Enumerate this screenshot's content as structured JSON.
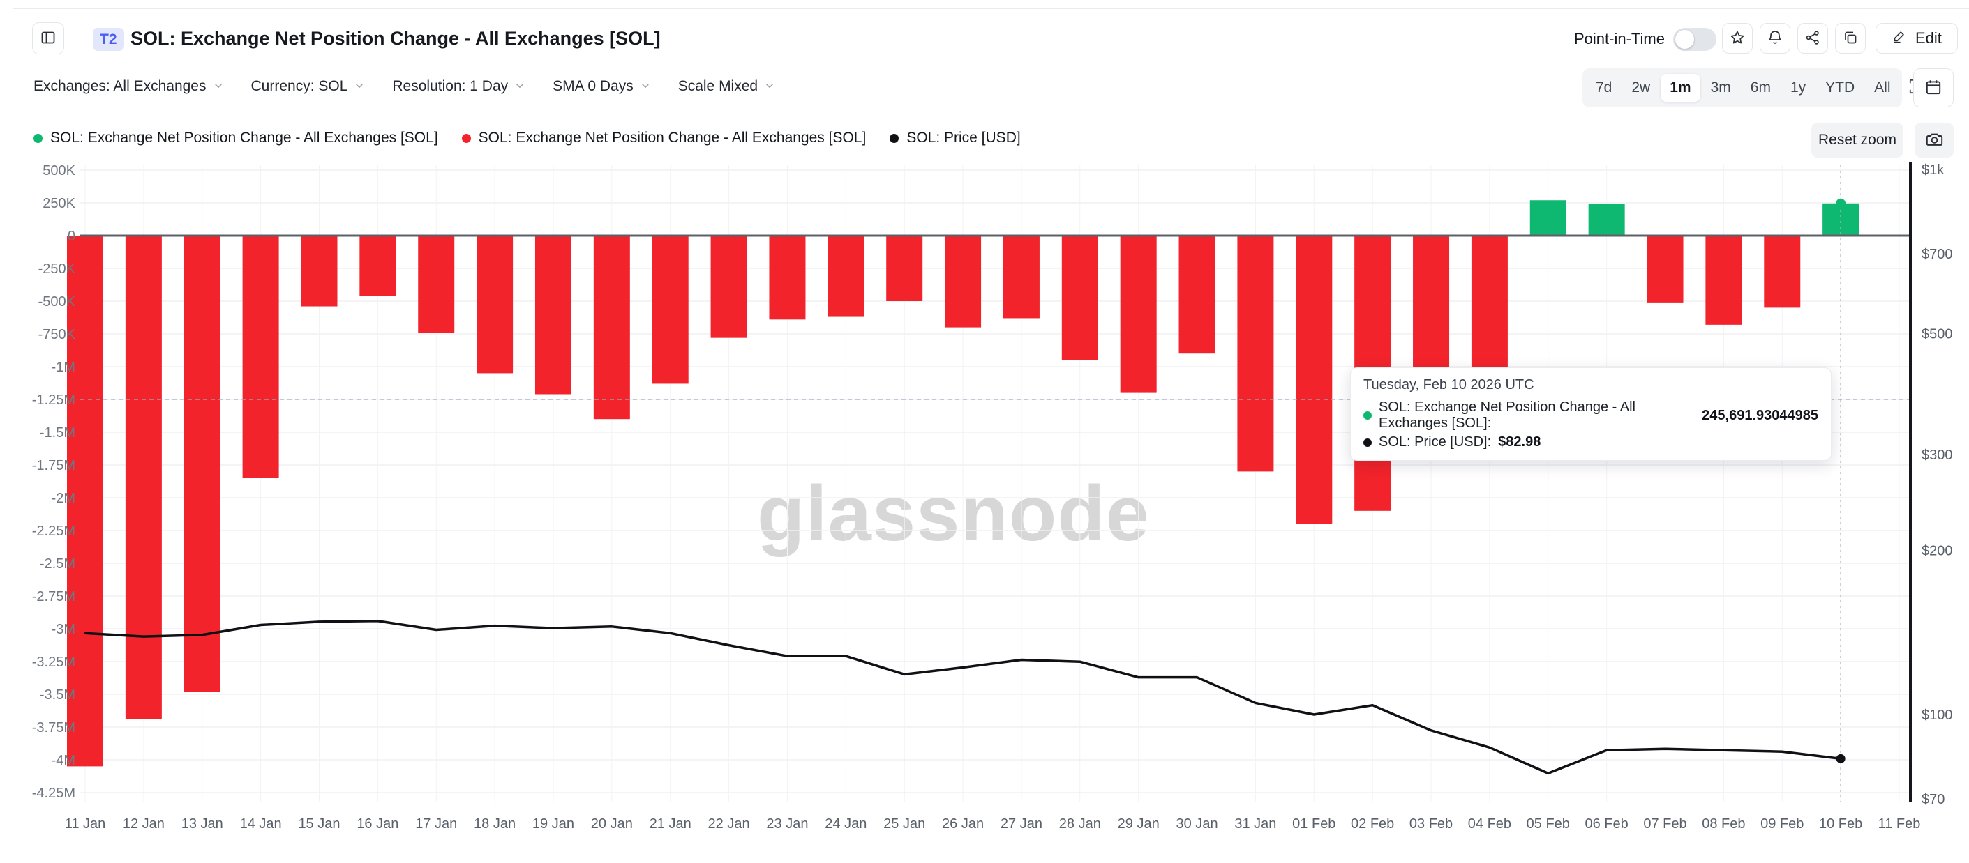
{
  "header": {
    "badge": "T2",
    "title": "SOL: Exchange Net Position Change - All Exchanges [SOL]",
    "point_in_time_label": "Point-in-Time",
    "point_in_time_on": false,
    "edit_label": "Edit"
  },
  "filters": [
    {
      "label": "Exchanges: All Exchanges"
    },
    {
      "label": "Currency: SOL"
    },
    {
      "label": "Resolution: 1 Day"
    },
    {
      "label": "SMA 0 Days"
    },
    {
      "label": "Scale Mixed"
    }
  ],
  "ranges": [
    "7d",
    "2w",
    "1m",
    "3m",
    "6m",
    "1y",
    "YTD",
    "All"
  ],
  "active_range": "1m",
  "legend": [
    {
      "label": "SOL: Exchange Net Position Change - All Exchanges [SOL]",
      "color": "#0fb871"
    },
    {
      "label": "SOL: Exchange Net Position Change - All Exchanges [SOL]",
      "color": "#f2232b"
    },
    {
      "label": "SOL: Price [USD]",
      "color": "#101114"
    }
  ],
  "reset_zoom_label": "Reset zoom",
  "watermark": "glassnode",
  "tooltip": {
    "date": "Tuesday, Feb 10 2026 UTC",
    "rows": [
      {
        "label": "SOL: Exchange Net Position Change - All Exchanges [SOL]:",
        "value": "245,691.93044985",
        "color": "#0fb871"
      },
      {
        "label": "SOL: Price [USD]:",
        "value": "$82.98",
        "color": "#101114"
      }
    ]
  },
  "chart_data": {
    "type": "bar",
    "subtypes": [
      "bar",
      "line"
    ],
    "title": "SOL: Exchange Net Position Change - All Exchanges [SOL]",
    "categories": [
      "11 Jan",
      "12 Jan",
      "13 Jan",
      "14 Jan",
      "15 Jan",
      "16 Jan",
      "17 Jan",
      "18 Jan",
      "19 Jan",
      "20 Jan",
      "21 Jan",
      "22 Jan",
      "23 Jan",
      "24 Jan",
      "25 Jan",
      "26 Jan",
      "27 Jan",
      "28 Jan",
      "29 Jan",
      "30 Jan",
      "31 Jan",
      "01 Feb",
      "02 Feb",
      "03 Feb",
      "04 Feb",
      "05 Feb",
      "06 Feb",
      "07 Feb",
      "08 Feb",
      "09 Feb",
      "10 Feb"
    ],
    "x_tick_labels": [
      "11 Jan",
      "12 Jan",
      "13 Jan",
      "14 Jan",
      "15 Jan",
      "16 Jan",
      "17 Jan",
      "18 Jan",
      "19 Jan",
      "20 Jan",
      "21 Jan",
      "22 Jan",
      "23 Jan",
      "24 Jan",
      "25 Jan",
      "26 Jan",
      "27 Jan",
      "28 Jan",
      "29 Jan",
      "30 Jan",
      "31 Jan",
      "01 Feb",
      "02 Feb",
      "03 Feb",
      "04 Feb",
      "05 Feb",
      "06 Feb",
      "07 Feb",
      "08 Feb",
      "09 Feb",
      "10 Feb",
      "11 Feb"
    ],
    "series": [
      {
        "name": "SOL: Exchange Net Position Change - All Exchanges [SOL]",
        "type": "bar",
        "axis": "left",
        "color_positive": "#0fb871",
        "color_negative": "#f2232b",
        "values": [
          -4050000,
          -3690000,
          -3480000,
          -1850000,
          -540000,
          -460000,
          -740000,
          -1050000,
          -1210000,
          -1400000,
          -1130000,
          -780000,
          -640000,
          -620000,
          -500000,
          -700000,
          -630000,
          -950000,
          -1200000,
          -900000,
          -1800000,
          -2200000,
          -2100000,
          -1450000,
          -1020000,
          270000,
          240000,
          -510000,
          -680000,
          -550000,
          245691.93044985
        ]
      },
      {
        "name": "SOL: Price [USD]",
        "type": "line",
        "axis": "right",
        "color": "#101114",
        "values": [
          141,
          139,
          140,
          146,
          148,
          148.5,
          143,
          145.5,
          144,
          145,
          141,
          134,
          128,
          128,
          118.5,
          122,
          126,
          125,
          117,
          117,
          105,
          100,
          104,
          93.5,
          87,
          78,
          86,
          86.5,
          86,
          85.5,
          82.98
        ]
      }
    ],
    "left_axis": {
      "scale": "linear",
      "min": -4250000,
      "max": 500000,
      "tick_interval": 250000,
      "tick_labels": [
        "500K",
        "250K",
        "0",
        "-250K",
        "-500K",
        "-750K",
        "-1M",
        "-1.25M",
        "-1.5M",
        "-1.75M",
        "-2M",
        "-2.25M",
        "-2.5M",
        "-2.75M",
        "-3M",
        "-3.25M",
        "-3.5M",
        "-3.75M",
        "-4M",
        "-4.25M"
      ]
    },
    "right_axis": {
      "scale": "log",
      "unit": "USD",
      "ticks": [
        {
          "label": "$1k",
          "value": 1000
        },
        {
          "label": "$700",
          "value": 700
        },
        {
          "label": "$500",
          "value": 500
        },
        {
          "label": "$300",
          "value": 300
        },
        {
          "label": "$200",
          "value": 200
        },
        {
          "label": "$100",
          "value": 100
        },
        {
          "label": "$70",
          "value": 70
        }
      ]
    },
    "grid": true,
    "legend_position": "top-left",
    "hover_index": 30,
    "hover_values": {
      "bar": "245,691.93044985",
      "price": "$82.98"
    }
  }
}
